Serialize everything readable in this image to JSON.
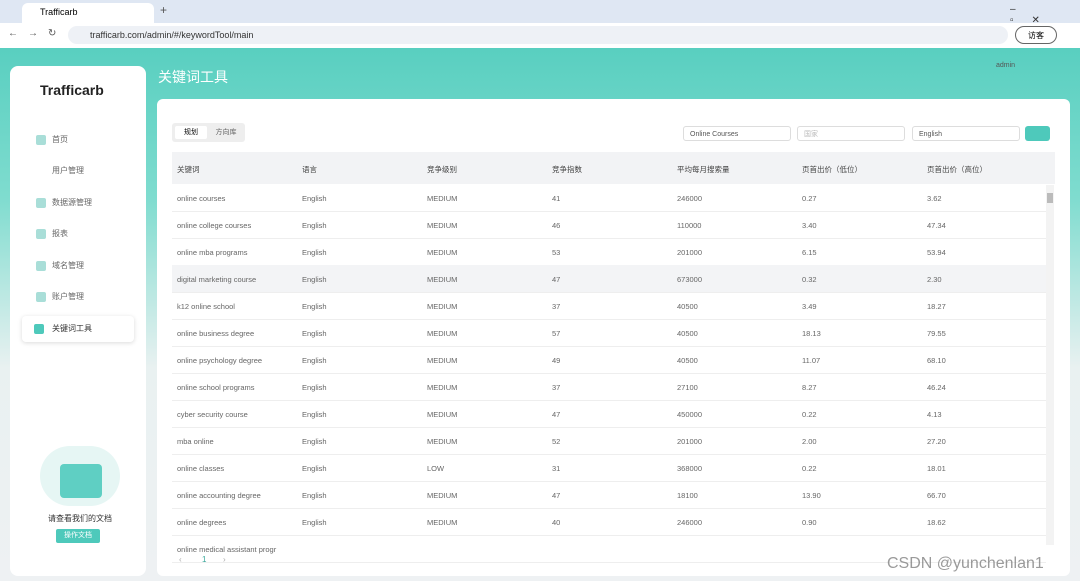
{
  "browser": {
    "tab_title": "Trafficarb",
    "url": "trafficarb.com/admin/#/keywordTool/main",
    "guest": "访客"
  },
  "sidebar": {
    "logo": "Trafficarb",
    "menu": [
      "首页",
      "用户管理",
      "数据源管理",
      "报表",
      "域名管理",
      "账户管理",
      "关键词工具"
    ],
    "doc_text": "请查看我们的文档",
    "doc_button": "操作文档"
  },
  "header": {
    "title": "关键词工具",
    "user": "admin"
  },
  "toolbar": {
    "tabs": [
      "规划",
      "方向库"
    ],
    "keyword_filter": "Online Courses",
    "country_placeholder": "国家",
    "language": "English"
  },
  "table": {
    "columns": [
      "关键词",
      "语言",
      "竞争级别",
      "竞争指数",
      "平均每月搜索量",
      "页首出价（低位）",
      "页首出价（高位）"
    ],
    "rows": [
      [
        "online courses",
        "English",
        "MEDIUM",
        "41",
        "246000",
        "0.27",
        "3.62"
      ],
      [
        "online college courses",
        "English",
        "MEDIUM",
        "46",
        "110000",
        "3.40",
        "47.34"
      ],
      [
        "online mba programs",
        "English",
        "MEDIUM",
        "53",
        "201000",
        "6.15",
        "53.94"
      ],
      [
        "digital marketing course",
        "English",
        "MEDIUM",
        "47",
        "673000",
        "0.32",
        "2.30"
      ],
      [
        "k12 online school",
        "English",
        "MEDIUM",
        "37",
        "40500",
        "3.49",
        "18.27"
      ],
      [
        "online business degree",
        "English",
        "MEDIUM",
        "57",
        "40500",
        "18.13",
        "79.55"
      ],
      [
        "online psychology degree",
        "English",
        "MEDIUM",
        "49",
        "40500",
        "11.07",
        "68.10"
      ],
      [
        "online school programs",
        "English",
        "MEDIUM",
        "37",
        "27100",
        "8.27",
        "46.24"
      ],
      [
        "cyber security course",
        "English",
        "MEDIUM",
        "47",
        "450000",
        "0.22",
        "4.13"
      ],
      [
        "mba online",
        "English",
        "MEDIUM",
        "52",
        "201000",
        "2.00",
        "27.20"
      ],
      [
        "online classes",
        "English",
        "LOW",
        "31",
        "368000",
        "0.22",
        "18.01"
      ],
      [
        "online accounting degree",
        "English",
        "MEDIUM",
        "47",
        "18100",
        "13.90",
        "66.70"
      ],
      [
        "online degrees",
        "English",
        "MEDIUM",
        "40",
        "246000",
        "0.90",
        "18.62"
      ],
      [
        "online medical assistant progr"
      ]
    ]
  },
  "pagination": {
    "current": "1"
  },
  "watermark": "CSDN @yunchenlan1"
}
